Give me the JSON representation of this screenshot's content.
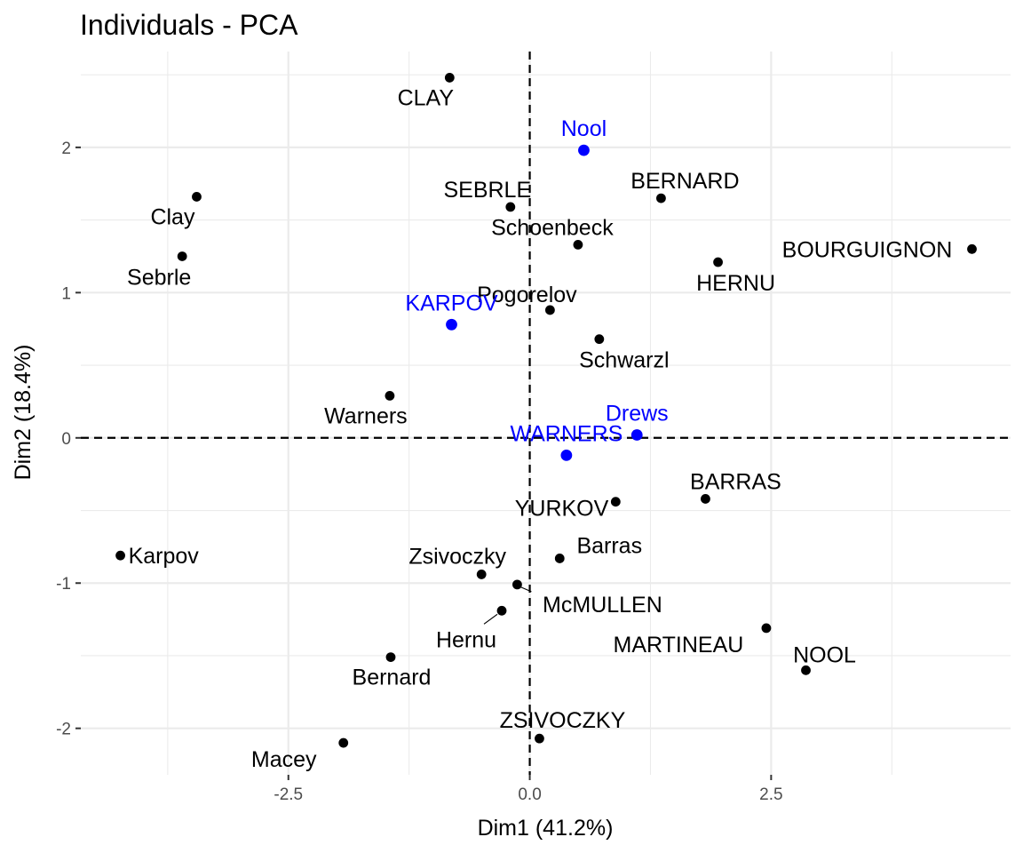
{
  "chart_data": {
    "type": "scatter",
    "title": "Individuals - PCA",
    "xlabel": "Dim1 (41.2%)",
    "ylabel": "Dim2 (18.4%)",
    "xlim": [
      -4.65,
      4.98
    ],
    "ylim": [
      -2.32,
      2.66
    ],
    "x_ticks": [
      -2.5,
      0,
      2.5
    ],
    "x_tick_labels": [
      "-2.5",
      "0.0",
      "2.5"
    ],
    "y_ticks": [
      -2,
      -1,
      0,
      1,
      2
    ],
    "y_tick_labels": [
      "-2",
      "-1",
      "0",
      "1",
      "2"
    ],
    "grid": true,
    "reference_lines": {
      "x": 0,
      "y": 0,
      "style": "dashed"
    },
    "colors": {
      "active": "#000000",
      "supplementary": "#0000ff",
      "grid": "#ebebeb"
    },
    "series": [
      {
        "group": "active",
        "color": "#000000",
        "points": [
          {
            "label": "SEBRLE",
            "x": -0.2,
            "y": 1.59
          },
          {
            "label": "CLAY",
            "x": -0.83,
            "y": 2.48
          },
          {
            "label": "BERNARD",
            "x": 1.36,
            "y": 1.65
          },
          {
            "label": "YURKOV",
            "x": 0.89,
            "y": -0.44
          },
          {
            "label": "ZSIVOCZKY",
            "x": 0.1,
            "y": -2.07
          },
          {
            "label": "McMULLEN",
            "x": -0.13,
            "y": -1.01
          },
          {
            "label": "MARTINEAU",
            "x": 2.45,
            "y": -1.31
          },
          {
            "label": "HERNU",
            "x": 1.95,
            "y": 1.21
          },
          {
            "label": "BARRAS",
            "x": 1.82,
            "y": -0.42
          },
          {
            "label": "NOOL",
            "x": 2.86,
            "y": -1.6
          },
          {
            "label": "BOURGUIGNON",
            "x": 4.58,
            "y": 1.3
          },
          {
            "label": "Sebrle",
            "x": -3.6,
            "y": 1.25
          },
          {
            "label": "Clay",
            "x": -3.45,
            "y": 1.66
          },
          {
            "label": "Karpov",
            "x": -4.24,
            "y": -0.81
          },
          {
            "label": "Macey",
            "x": -1.93,
            "y": -2.1
          },
          {
            "label": "Warners",
            "x": -1.45,
            "y": 0.29
          },
          {
            "label": "Zsivoczky",
            "x": -0.5,
            "y": -0.94
          },
          {
            "label": "Hernu",
            "x": -0.29,
            "y": -1.19
          },
          {
            "label": "Bernard",
            "x": -1.44,
            "y": -1.51
          },
          {
            "label": "Schwarzl",
            "x": 0.72,
            "y": 0.68
          },
          {
            "label": "Pogorelov",
            "x": 0.21,
            "y": 0.88
          },
          {
            "label": "Schoenbeck",
            "x": 0.5,
            "y": 1.33
          },
          {
            "label": "Barras",
            "x": 0.31,
            "y": -0.83
          }
        ]
      },
      {
        "group": "supplementary",
        "color": "#0000ff",
        "points": [
          {
            "label": "KARPOV",
            "x": -0.81,
            "y": 0.78
          },
          {
            "label": "WARNERS",
            "x": 0.38,
            "y": -0.12
          },
          {
            "label": "Nool",
            "x": 0.56,
            "y": 1.98
          },
          {
            "label": "Drews",
            "x": 1.11,
            "y": 0.02
          }
        ]
      }
    ]
  }
}
